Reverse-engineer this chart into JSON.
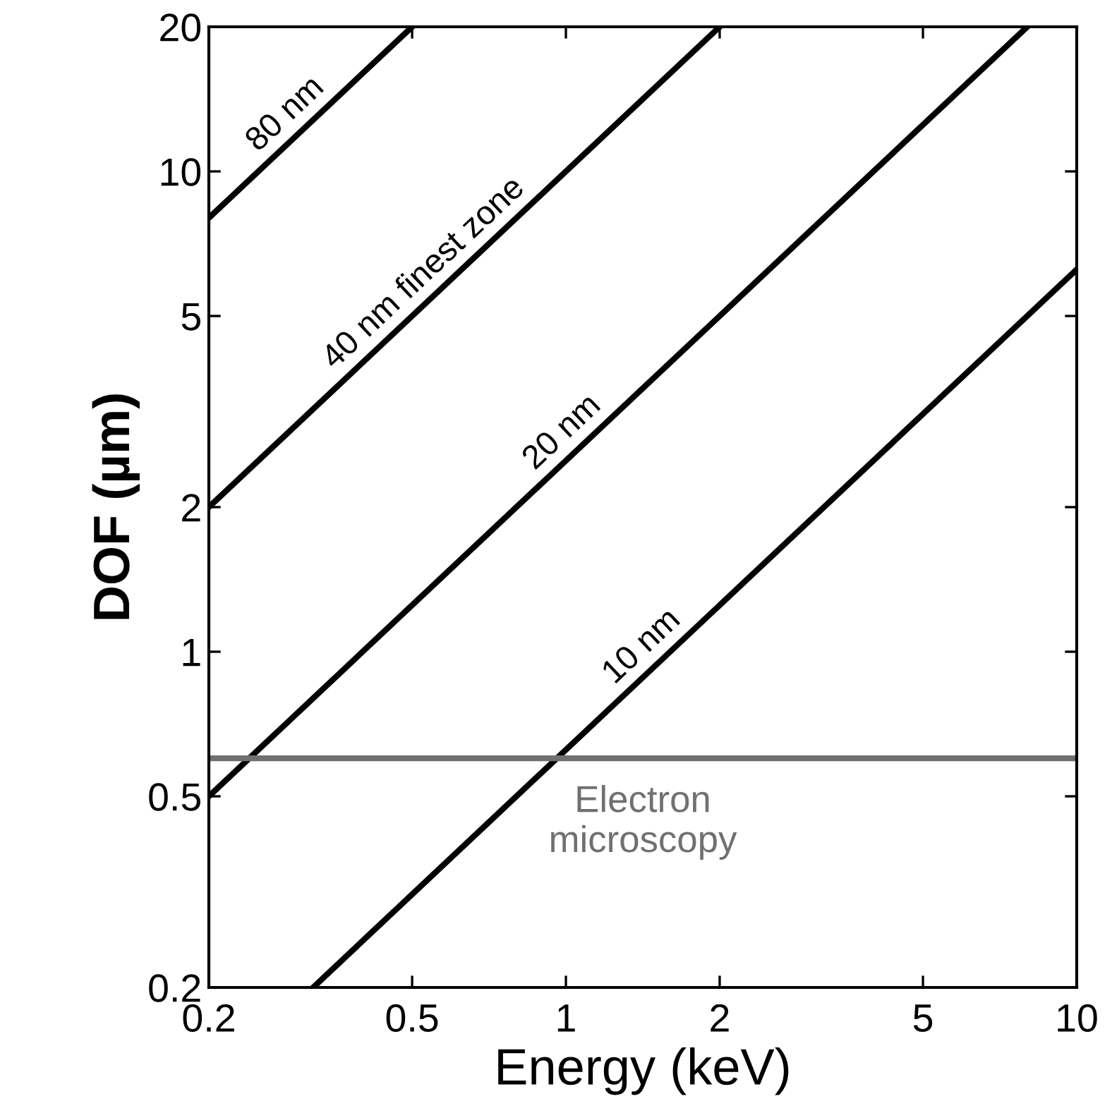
{
  "chart_data": {
    "type": "line",
    "xlabel": "Energy (keV)",
    "ylabel": "DOF (µm)",
    "log": "xy",
    "xlim": [
      0.2,
      10
    ],
    "ylim": [
      0.2,
      20
    ],
    "xticks": [
      0.2,
      0.5,
      1,
      2,
      5,
      10
    ],
    "yticks": [
      0.2,
      0.5,
      1,
      2,
      5,
      10,
      20
    ],
    "grid": false,
    "legend": false,
    "marker": "none",
    "line_style": "solid",
    "series": [
      {
        "name": "80 nm",
        "color": "#000000",
        "x": [
          0.2,
          0.5
        ],
        "values": [
          8,
          20
        ]
      },
      {
        "name": "40 nm finest zone",
        "color": "#000000",
        "x": [
          0.2,
          2
        ],
        "values": [
          2,
          20
        ]
      },
      {
        "name": "20 nm",
        "color": "#000000",
        "x": [
          0.2,
          8
        ],
        "values": [
          0.5,
          20
        ]
      },
      {
        "name": "10 nm",
        "color": "#000000",
        "x": [
          0.32,
          10
        ],
        "values": [
          0.2,
          6.25
        ]
      }
    ],
    "ref_lines": [
      {
        "axis": "y",
        "value": 0.6,
        "label": "Electron microscopy",
        "color": "#707070"
      }
    ]
  }
}
